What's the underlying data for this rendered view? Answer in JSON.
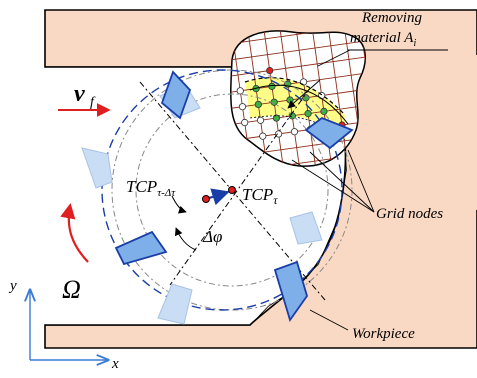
{
  "labels": {
    "removing_line1": "Removing",
    "removing_line2": "material A",
    "removing_sub": "i",
    "grid_nodes": "Grid nodes",
    "workpiece": "Workpiece",
    "tcp": "TCP",
    "tcp_tau": "τ",
    "tcp_prev_sub": "τ-Δτ",
    "delta_phi": "Δφ",
    "v_f": "v",
    "v_f_sub": "f",
    "omega": "Ω",
    "axis_x": "x",
    "axis_y": "y"
  },
  "colors": {
    "workpiece_fill": "#F9D9C4",
    "insert_fill": "#7FAFE8",
    "insert_stroke": "#1A3EA8",
    "faded_insert_fill": "#C9DDF5",
    "removal_fill": "#FFFF88",
    "grid_stroke": "#8B2E1A",
    "node_green": "#3CB043",
    "node_red": "#E02020",
    "arrow_red": "#E02020",
    "axis_blue": "#3A7BD5",
    "path_blue": "#1A3EA8"
  }
}
